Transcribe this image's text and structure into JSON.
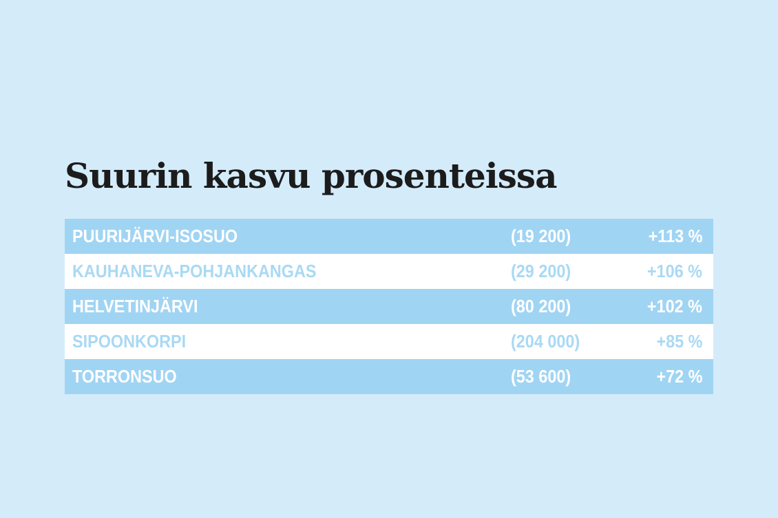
{
  "title": "Suurin kasvu prosenteissa",
  "table": {
    "rows": [
      [
        "PUURIJÄRVI-ISOSUO",
        "(19 200)",
        "+113 %"
      ],
      [
        "KAUHANEVA-POHJANKANGAS",
        "(29 200)",
        "+106 %"
      ],
      [
        "HELVETINJÄRVI",
        "(80 200)",
        "+102 %"
      ],
      [
        "SIPOONKORPI",
        "(204 000)",
        "+85 %"
      ],
      [
        "TORRONSUO",
        "(53 600)",
        "+72 %"
      ]
    ]
  }
}
